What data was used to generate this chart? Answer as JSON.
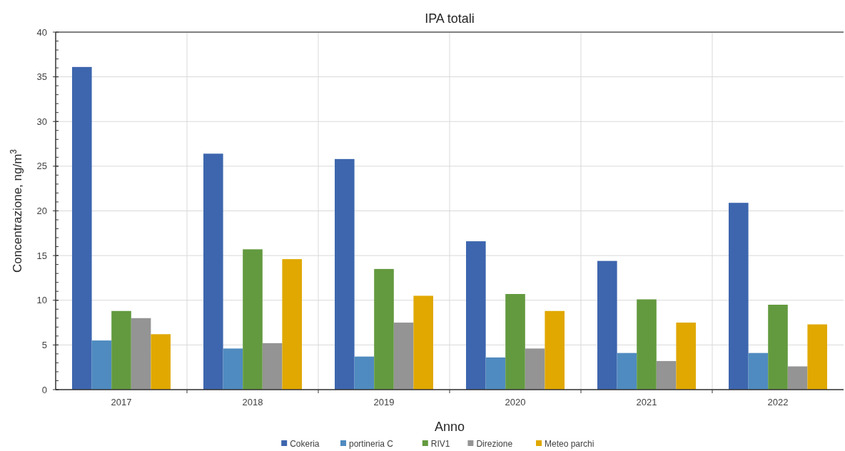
{
  "chart_data": {
    "type": "bar",
    "title": "IPA totali",
    "xlabel": "Anno",
    "ylabel": "Concentrazione, ng/m$^{3}$",
    "categories": [
      "2017",
      "2018",
      "2019",
      "2020",
      "2021",
      "2022"
    ],
    "series": [
      {
        "name": "Cokeria",
        "color": "#3d66ae",
        "values": [
          36.1,
          26.4,
          25.8,
          16.6,
          14.4,
          20.9
        ]
      },
      {
        "name": "portineria C",
        "color": "#4f8bc0",
        "values": [
          5.5,
          4.6,
          3.7,
          3.6,
          4.1,
          4.1
        ]
      },
      {
        "name": "RIV1",
        "color": "#639a3f",
        "values": [
          8.8,
          15.7,
          13.5,
          10.7,
          10.1,
          9.5
        ]
      },
      {
        "name": "Direzione",
        "color": "#949494",
        "values": [
          8.0,
          5.2,
          7.5,
          4.6,
          3.2,
          2.6
        ]
      },
      {
        "name": "Meteo parchi",
        "color": "#e0a800",
        "values": [
          6.2,
          14.6,
          10.5,
          8.8,
          7.5,
          7.3
        ]
      }
    ],
    "ylim": [
      0,
      40
    ],
    "yticks": [
      0,
      5,
      10,
      15,
      20,
      25,
      30,
      35,
      40
    ],
    "grid": true,
    "legend": "bottom"
  }
}
